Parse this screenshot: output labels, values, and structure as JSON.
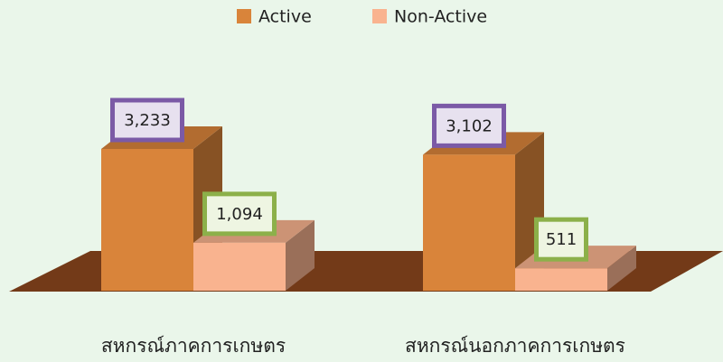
{
  "chart_data": {
    "type": "bar3d",
    "categories": [
      "สหกรณ์ภาคการเกษตร",
      "สหกรณ์นอกภาคการเกษตร"
    ],
    "series": [
      {
        "name": "Active",
        "color": "#d9843a",
        "values": [
          3233,
          3102
        ],
        "value_labels": [
          "3,233",
          "3,102"
        ]
      },
      {
        "name": "Non-Active",
        "color": "#f9b38f",
        "values": [
          1094,
          511
        ],
        "value_labels": [
          "1,094",
          "511"
        ]
      }
    ],
    "legend": "top"
  }
}
